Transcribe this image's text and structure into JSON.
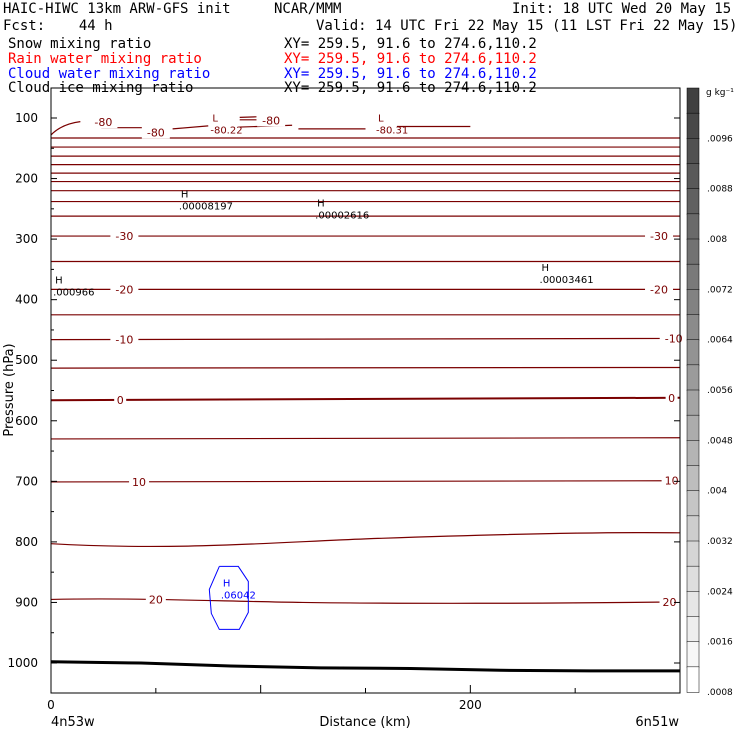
{
  "header": {
    "line1_left": "HAIC-HIWC 13km ARW-GFS init",
    "line1_center": "NCAR/MMM",
    "line1_right": "Init: 18 UTC Wed 20 May 15",
    "line2_left": "Fcst:    44 h",
    "line2_right": "Valid: 14 UTC Fri 22 May 15 (11 LST Fri 22 May 15)",
    "fields": [
      {
        "label": "Snow mixing ratio",
        "xy": "XY= 259.5, 91.6 to 274.6,110.2",
        "color": "#000000"
      },
      {
        "label": "Rain water mixing ratio",
        "xy": "XY= 259.5, 91.6 to 274.6,110.2",
        "color": "#ff0000"
      },
      {
        "label": "Cloud water mixing ratio",
        "xy": "XY= 259.5, 91.6 to 274.6,110.2",
        "color": "#0000ff"
      },
      {
        "label": "Cloud ice mixing ratio",
        "xy": "XY= 259.5, 91.6 to 274.6,110.2",
        "color": "#000000"
      }
    ]
  },
  "chart_data": {
    "type": "contour",
    "xlabel": "Distance (km)",
    "ylabel": "Pressure (hPa)",
    "xlim": [
      0,
      300
    ],
    "ylim": [
      1050,
      50
    ],
    "x_ticks": [
      0,
      200
    ],
    "y_ticks": [
      100,
      200,
      300,
      400,
      500,
      600,
      700,
      800,
      900,
      1000
    ],
    "x_endpoint_labels": [
      "4n53w",
      "6n51w"
    ],
    "colorbar": {
      "unit": "g kg⁻¹",
      "labels": [
        ".0096",
        ".0088",
        ".008",
        ".0072",
        ".0064",
        ".0056",
        ".0048",
        ".004",
        ".0032",
        ".0024",
        ".0016",
        ".0008"
      ],
      "color_low": "#ffffff",
      "color_high": "#404040"
    },
    "temperature_contours": {
      "color": "#7a0000",
      "levels": [
        -80,
        -75,
        -70,
        -65,
        -60,
        -55,
        -50,
        -45,
        -40,
        -35,
        -30,
        -25,
        -20,
        -15,
        -10,
        -5,
        0,
        5,
        10,
        15,
        20
      ],
      "labels": [
        {
          "text": "-80",
          "x": 25,
          "p": 107
        },
        {
          "text": "-80",
          "x": 50,
          "p": 124
        },
        {
          "text": "-80",
          "x": 105,
          "p": 104
        },
        {
          "text": "-30",
          "x": 35,
          "p": 295
        },
        {
          "text": "-30",
          "x": 290,
          "p": 295
        },
        {
          "text": "-20",
          "x": 35,
          "p": 383
        },
        {
          "text": "-20",
          "x": 290,
          "p": 383
        },
        {
          "text": "-10",
          "x": 35,
          "p": 466
        },
        {
          "text": "-10",
          "x": 297,
          "p": 464
        },
        {
          "text": "0",
          "x": 33,
          "p": 566
        },
        {
          "text": "0",
          "x": 296,
          "p": 562
        },
        {
          "text": "10",
          "x": 42,
          "p": 701
        },
        {
          "text": "10",
          "x": 296,
          "p": 699
        },
        {
          "text": "20",
          "x": 50,
          "p": 895
        },
        {
          "text": "20",
          "x": 295,
          "p": 899
        }
      ]
    },
    "extrema": [
      {
        "type": "L",
        "value": "-80.22",
        "x": 76,
        "p": 112,
        "color": "#7a0000"
      },
      {
        "type": "L",
        "value": "-80.31",
        "x": 155,
        "p": 112,
        "color": "#7a0000"
      },
      {
        "type": "H",
        "value": ".00008197",
        "x": 61,
        "p": 238,
        "color": "#000000"
      },
      {
        "type": "H",
        "value": ".00002616",
        "x": 126,
        "p": 253,
        "color": "#000000"
      },
      {
        "type": "H",
        "value": ".00003461",
        "x": 233,
        "p": 359,
        "color": "#000000"
      },
      {
        "type": "H",
        "value": ".000966",
        "x": 1,
        "p": 380,
        "color": "#000000"
      },
      {
        "type": "H",
        "value": ".06042",
        "x": 81,
        "p": 880,
        "color": "#0000ff"
      }
    ],
    "terrain_surface_hPa": [
      998,
      1000,
      1005,
      1008,
      1009,
      1012,
      1013,
      1013
    ]
  }
}
